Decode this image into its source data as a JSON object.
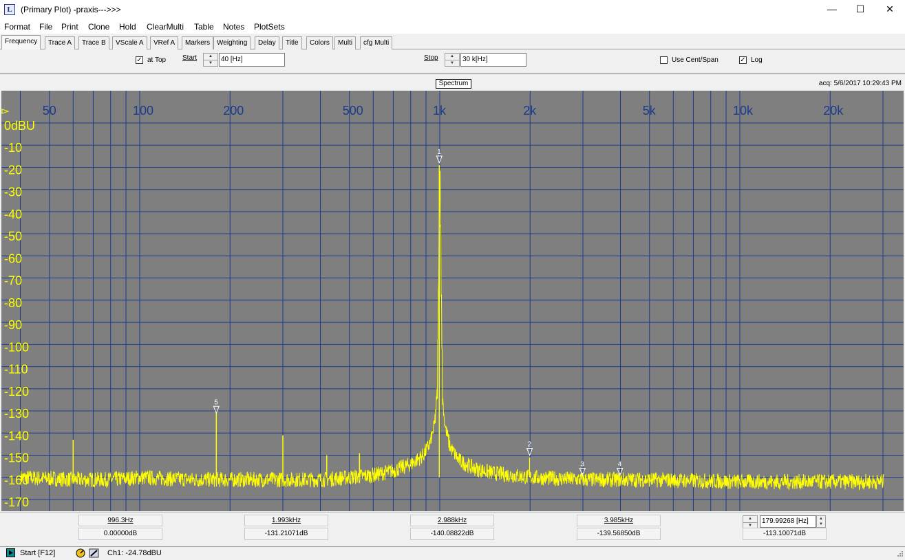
{
  "window": {
    "title": "(Primary Plot) -praxis--->>>",
    "icon": "praxis-app-icon"
  },
  "menu": [
    "Format",
    "File",
    "Print",
    "Clone",
    "Hold",
    "ClearMulti",
    "Table",
    "Notes",
    "PlotSets"
  ],
  "tabs": [
    {
      "label": "Frequency",
      "active": true
    },
    {
      "label": "Trace A"
    },
    {
      "label": "Trace B"
    },
    {
      "label": "VScale A"
    },
    {
      "label": "VRef A"
    },
    {
      "label": "Markers"
    },
    {
      "label": "Weighting"
    },
    {
      "label": "Delay"
    },
    {
      "label": "Title"
    },
    {
      "label": "Colors"
    },
    {
      "label": "Multi"
    },
    {
      "label": "cfg Multi"
    }
  ],
  "controls": {
    "at_top": {
      "label": "at Top",
      "checked": true
    },
    "start": {
      "label": "Start",
      "value": "40 [Hz]"
    },
    "stop": {
      "label": "Stop",
      "value": "30 k[Hz]"
    },
    "use_cent_span": {
      "label": "Use Cent/Span",
      "checked": false
    },
    "log": {
      "label": "Log",
      "checked": true
    }
  },
  "plot_header": {
    "mode_label": "Spectrum",
    "acq": "acq: 5/6/2017 10:29:43 PM"
  },
  "chart_data": {
    "type": "line",
    "title": "",
    "xscale": "log",
    "xlim": [
      40,
      30000
    ],
    "ylim": [
      -180,
      0
    ],
    "x_tick_labels": [
      {
        "value": 50,
        "label": "50"
      },
      {
        "value": 100,
        "label": "100"
      },
      {
        "value": 200,
        "label": "200"
      },
      {
        "value": 500,
        "label": "500"
      },
      {
        "value": 1000,
        "label": "1k"
      },
      {
        "value": 2000,
        "label": "2k"
      },
      {
        "value": 5000,
        "label": "5k"
      },
      {
        "value": 10000,
        "label": "10k"
      },
      {
        "value": 20000,
        "label": "20k"
      }
    ],
    "x_gridlines": [
      40,
      50,
      60,
      70,
      80,
      90,
      100,
      200,
      300,
      400,
      500,
      600,
      700,
      800,
      900,
      1000,
      2000,
      3000,
      4000,
      5000,
      6000,
      7000,
      8000,
      9000,
      10000,
      20000,
      30000
    ],
    "y_ticks": [
      {
        "value": 0,
        "label": "0dBU"
      },
      {
        "value": -10,
        "label": "-10"
      },
      {
        "value": -20,
        "label": "-20"
      },
      {
        "value": -30,
        "label": "-30"
      },
      {
        "value": -40,
        "label": "-40"
      },
      {
        "value": -50,
        "label": "-50"
      },
      {
        "value": -60,
        "label": "-60"
      },
      {
        "value": -70,
        "label": "-70"
      },
      {
        "value": -80,
        "label": "-80"
      },
      {
        "value": -90,
        "label": "-90"
      },
      {
        "value": -100,
        "label": "-100"
      },
      {
        "value": -110,
        "label": "-110"
      },
      {
        "value": -120,
        "label": "-120"
      },
      {
        "value": -130,
        "label": "-130"
      },
      {
        "value": -140,
        "label": "-140"
      },
      {
        "value": -150,
        "label": "-150"
      },
      {
        "value": -160,
        "label": "-160"
      },
      {
        "value": -170,
        "label": "-170"
      }
    ],
    "grid": true,
    "colors": {
      "background": "#7f7f7f",
      "grid": "#1a3c8c",
      "trace": "#ffff00",
      "x_labels": "#1a3c8c",
      "y_labels": "#ffff00",
      "marker": "#ffffff"
    },
    "series": [
      {
        "noise_floor_db": -161,
        "noise_points": [
          [
            40,
            -160
          ],
          [
            60,
            -161
          ],
          [
            80,
            -161
          ],
          [
            100,
            -160
          ],
          [
            150,
            -161
          ],
          [
            200,
            -161
          ],
          [
            300,
            -161
          ],
          [
            400,
            -161
          ],
          [
            500,
            -160
          ],
          [
            600,
            -159
          ],
          [
            700,
            -157
          ],
          [
            800,
            -154
          ],
          [
            880,
            -150
          ],
          [
            930,
            -144
          ],
          [
            960,
            -136
          ],
          [
            980,
            -122
          ],
          [
            1000,
            -19
          ],
          [
            1020,
            -124
          ],
          [
            1040,
            -137
          ],
          [
            1080,
            -146
          ],
          [
            1150,
            -152
          ],
          [
            1300,
            -156
          ],
          [
            1500,
            -158
          ],
          [
            2000,
            -160
          ],
          [
            3000,
            -161
          ],
          [
            5000,
            -161
          ],
          [
            10000,
            -162
          ],
          [
            20000,
            -162
          ],
          [
            30000,
            -162
          ]
        ],
        "spikes": [
          {
            "x": 60,
            "y": -143
          },
          {
            "x": 180,
            "y": -131
          },
          {
            "x": 300,
            "y": -141
          },
          {
            "x": 420,
            "y": -150
          },
          {
            "x": 540,
            "y": -149
          },
          {
            "x": 996.3,
            "y": -19
          },
          {
            "x": 1993,
            "y": -151
          },
          {
            "x": 2988,
            "y": -158
          },
          {
            "x": 3985,
            "y": -158
          }
        ]
      }
    ],
    "markers": [
      {
        "label": "1",
        "x": 996.3,
        "y": -18
      },
      {
        "label": "2",
        "x": 1993,
        "y": -150
      },
      {
        "label": "3",
        "x": 2988,
        "y": -159
      },
      {
        "label": "4",
        "x": 3985,
        "y": -159
      },
      {
        "label": "5",
        "x": 180,
        "y": -131
      }
    ]
  },
  "marker_readouts": [
    {
      "num": "1",
      "freq": "996.3Hz",
      "amp": "0.00000dB"
    },
    {
      "num": "2",
      "freq": "1.993kHz",
      "amp": "-131.21071dB"
    },
    {
      "num": "3",
      "freq": "2.988kHz",
      "amp": "-140.08822dB"
    },
    {
      "num": "4",
      "freq": "3.985kHz",
      "amp": "-139.56850dB"
    },
    {
      "num": "5",
      "freq": "179.99268 [Hz]",
      "amp": "-113.10071dB"
    }
  ],
  "status": {
    "start": "Start [F12]",
    "channel": "Ch1: -24.78dBU"
  }
}
